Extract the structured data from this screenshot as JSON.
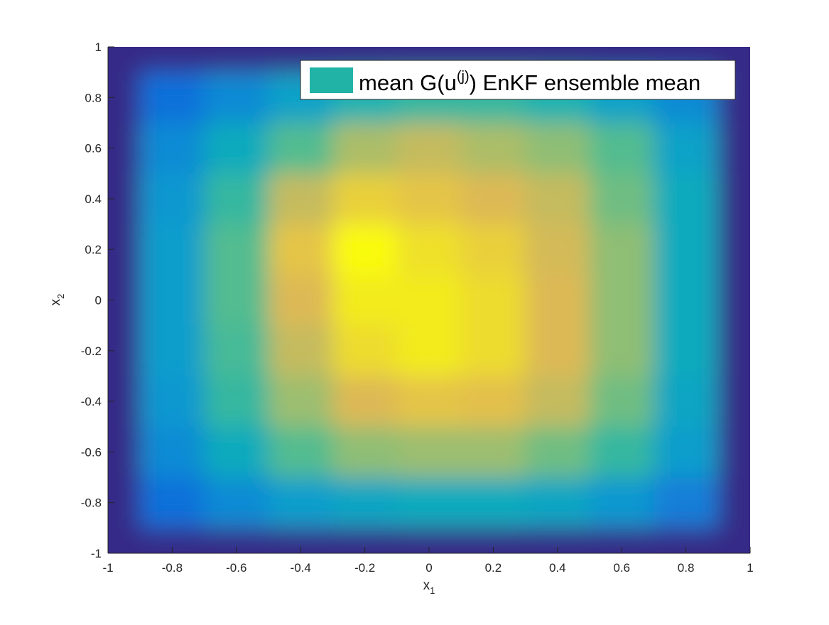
{
  "chart_data": {
    "type": "contourf",
    "colormap": "parula",
    "x": [
      -1,
      -0.8,
      -0.6,
      -0.4,
      -0.2,
      0,
      0.2,
      0.4,
      0.6,
      0.8,
      1
    ],
    "y": [
      1,
      0.8,
      0.6,
      0.4,
      0.2,
      0,
      -0.2,
      -0.4,
      -0.6,
      -0.8,
      -1
    ],
    "z": [
      [
        0,
        0,
        0,
        0,
        0,
        0,
        0,
        0,
        0,
        0,
        0
      ],
      [
        0,
        0.2,
        0.3,
        0.4,
        0.5,
        0.55,
        0.55,
        0.5,
        0.4,
        0.3,
        0
      ],
      [
        0,
        0.3,
        0.45,
        0.6,
        0.75,
        0.8,
        0.75,
        0.7,
        0.6,
        0.4,
        0
      ],
      [
        0,
        0.35,
        0.55,
        0.8,
        0.9,
        0.88,
        0.85,
        0.8,
        0.65,
        0.45,
        0
      ],
      [
        0,
        0.38,
        0.6,
        0.88,
        0.98,
        0.93,
        0.9,
        0.83,
        0.7,
        0.45,
        0
      ],
      [
        0,
        0.38,
        0.6,
        0.85,
        0.95,
        0.95,
        0.92,
        0.85,
        0.7,
        0.45,
        0
      ],
      [
        0,
        0.38,
        0.58,
        0.8,
        0.92,
        0.95,
        0.92,
        0.85,
        0.7,
        0.45,
        0
      ],
      [
        0,
        0.35,
        0.55,
        0.72,
        0.85,
        0.88,
        0.87,
        0.8,
        0.65,
        0.42,
        0
      ],
      [
        0,
        0.3,
        0.45,
        0.6,
        0.7,
        0.72,
        0.72,
        0.65,
        0.55,
        0.38,
        0
      ],
      [
        0,
        0.2,
        0.3,
        0.38,
        0.42,
        0.45,
        0.45,
        0.42,
        0.35,
        0.25,
        0
      ],
      [
        0,
        0,
        0,
        0,
        0,
        0,
        0,
        0,
        0,
        0,
        0
      ]
    ],
    "legend_text": [
      "mean G(u",
      "(j)",
      ") EnKF ensemble mean"
    ],
    "legend_color": "#21b3a6",
    "legend_position": "northeast",
    "xlabel": [
      "x",
      "1"
    ],
    "ylabel": [
      "x",
      "2"
    ],
    "xlim": [
      -1,
      1
    ],
    "ylim": [
      -1,
      1
    ],
    "xticks": [
      -1,
      -0.8,
      -0.6,
      -0.4,
      -0.2,
      0,
      0.2,
      0.4,
      0.6,
      0.8,
      1
    ],
    "yticks": [
      -1,
      -0.8,
      -0.6,
      -0.4,
      -0.2,
      0,
      0.2,
      0.4,
      0.6,
      0.8,
      1
    ]
  }
}
